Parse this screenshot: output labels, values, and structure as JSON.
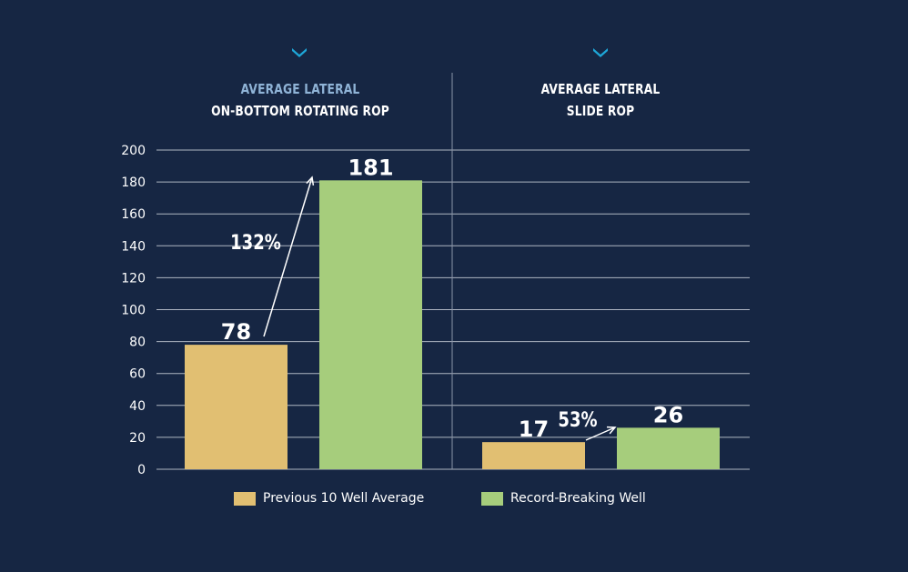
{
  "colors": {
    "background": "#162643",
    "previous": "#e1bf72",
    "record": "#a6cd7c",
    "grid": "#c9cfd9",
    "accent": "#1ea7d8",
    "title_line1": "#8fb3d6",
    "text": "#ffffff"
  },
  "panels": [
    {
      "title_line1": "AVERAGE LATERAL",
      "title_line2": "ON-BOTTOM ROTATING ROP",
      "chevron_icon": "chevron-down-icon"
    },
    {
      "title_line1": "AVERAGE LATERAL",
      "title_line2": "SLIDE ROP",
      "chevron_icon": "chevron-down-icon"
    }
  ],
  "legend": [
    {
      "label": "Previous 10 Well Average",
      "color": "#e1bf72"
    },
    {
      "label": "Record-Breaking Well",
      "color": "#a6cd7c"
    }
  ],
  "chart_data": {
    "type": "bar",
    "categories": [
      "AVERAGE LATERAL ON-BOTTOM ROTATING ROP",
      "AVERAGE LATERAL SLIDE ROP"
    ],
    "series": [
      {
        "name": "Previous 10 Well Average",
        "values": [
          78,
          17
        ]
      },
      {
        "name": "Record-Breaking Well",
        "values": [
          181,
          26
        ]
      }
    ],
    "data_labels": [
      [
        "78",
        "181"
      ],
      [
        "17",
        "26"
      ]
    ],
    "annotations": [
      "132%",
      "53%"
    ],
    "ylim": [
      0,
      200
    ],
    "yticks": [
      0,
      20,
      40,
      60,
      80,
      100,
      120,
      140,
      160,
      180,
      200
    ],
    "grid": true,
    "legend_position": "bottom"
  }
}
